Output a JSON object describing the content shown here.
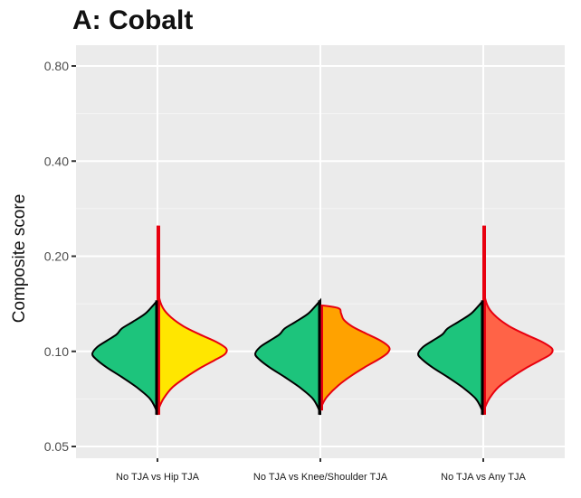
{
  "chart_data": {
    "type": "violin",
    "title": "A: Cobalt",
    "xlabel": "",
    "ylabel": "Composite score",
    "y_scale": "log",
    "ylim": [
      0.048,
      0.9
    ],
    "y_ticks": [
      0.05,
      0.1,
      0.2,
      0.4,
      0.8
    ],
    "y_tick_labels": [
      "0.05",
      "0.10",
      "0.20",
      "0.40",
      "0.80"
    ],
    "grid": true,
    "legend": "none",
    "categories": [
      "No TJA vs Hip TJA",
      "No TJA vs Knee/Shoulder TJA",
      "No TJA vs Any TJA"
    ],
    "split_violins": [
      {
        "category": "No TJA vs Hip TJA",
        "left": {
          "group": "No TJA",
          "fill": "#1dc47c",
          "min": 0.063,
          "max": 0.145
        },
        "right": {
          "group": "Hip TJA",
          "fill": "#ffe600",
          "min": 0.063,
          "max": 0.25
        }
      },
      {
        "category": "No TJA vs Knee/Shoulder TJA",
        "left": {
          "group": "No TJA",
          "fill": "#1dc47c",
          "min": 0.063,
          "max": 0.145
        },
        "right": {
          "group": "Knee/Shoulder TJA",
          "fill": "#ffa200",
          "min": 0.065,
          "max": 0.14
        }
      },
      {
        "category": "No TJA vs Any TJA",
        "left": {
          "group": "No TJA",
          "fill": "#1dc47c",
          "min": 0.063,
          "max": 0.145
        },
        "right": {
          "group": "Any TJA",
          "fill": "#ff6347",
          "min": 0.063,
          "max": 0.25
        }
      }
    ]
  }
}
